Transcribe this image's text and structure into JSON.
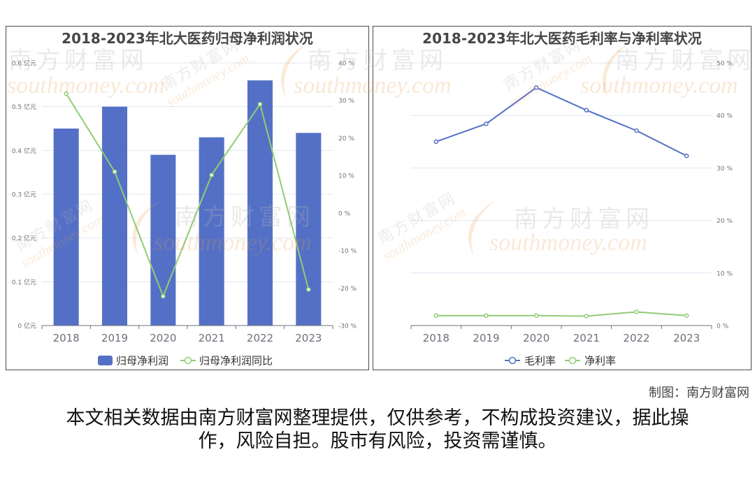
{
  "watermark": {
    "cn": "南方财富网",
    "en": "southmoney.com"
  },
  "chart_data": [
    {
      "type": "bar",
      "title": "2018-2023年北大医药归母净利润状况",
      "categories": [
        "2018",
        "2019",
        "2020",
        "2021",
        "2022",
        "2023"
      ],
      "series": [
        {
          "name": "归母净利润",
          "type": "bar",
          "axis": "left",
          "color": "#5470c6",
          "values": [
            0.45,
            0.5,
            0.39,
            0.43,
            0.56,
            0.44
          ]
        },
        {
          "name": "归母净利润同比",
          "type": "line",
          "axis": "right",
          "color": "#91cc75",
          "values": [
            31.8,
            11.0,
            -22.2,
            10.1,
            29.0,
            -20.4
          ]
        }
      ],
      "ylim_left": [
        0,
        0.6
      ],
      "ticks_left": [
        "0 亿元",
        "0.1 亿元",
        "0.2 亿元",
        "0.3 亿元",
        "0.4 亿元",
        "0.5 亿元",
        "0.6 亿元"
      ],
      "ylim_right": [
        -30,
        40
      ],
      "ticks_right": [
        "-30 %",
        "-20 %",
        "-10 %",
        "0 %",
        "10 %",
        "20 %",
        "30 %",
        "40 %"
      ],
      "grid": true,
      "legend": "bottom"
    },
    {
      "type": "line",
      "title": "2018-2023年北大医药毛利率与净利率状况",
      "categories": [
        "2018",
        "2019",
        "2020",
        "2021",
        "2022",
        "2023"
      ],
      "series": [
        {
          "name": "毛利率",
          "type": "line",
          "axis": "right",
          "color": "#5470c6",
          "values": [
            35.0,
            38.4,
            45.3,
            41.0,
            37.1,
            32.3
          ]
        },
        {
          "name": "净利率",
          "type": "line",
          "axis": "right",
          "color": "#91cc75",
          "values": [
            1.9,
            1.9,
            1.9,
            1.8,
            2.6,
            1.9
          ]
        }
      ],
      "ylim_right": [
        0,
        50
      ],
      "ticks_right": [
        "0 %",
        "10 %",
        "20 %",
        "30 %",
        "40 %",
        "50 %"
      ],
      "grid": true,
      "legend": "bottom"
    }
  ],
  "footer": {
    "credit": "制图：南方财富网",
    "disclaimer": "本文相关数据由南方财富网整理提供，仅供参考，不构成投资建议，据此操作，风险自担。股市有风险，投资需谨慎。"
  }
}
